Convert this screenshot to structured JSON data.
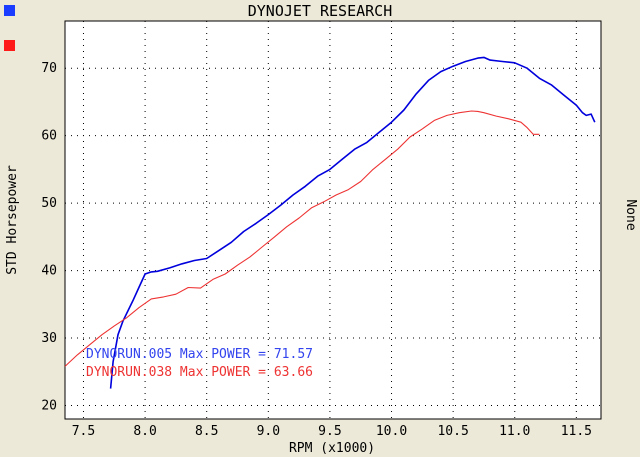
{
  "chart_data": {
    "type": "line",
    "title": "DYNOJET RESEARCH",
    "xlabel": "RPM (x1000)",
    "ylabel": "STD Horsepower",
    "y2label": "None",
    "xlim": [
      7.35,
      11.7
    ],
    "ylim": [
      18,
      77
    ],
    "x_ticks": [
      "7.5",
      "8.0",
      "8.5",
      "9.0",
      "9.5",
      "10.0",
      "10.5",
      "11.0",
      "11.5"
    ],
    "y_ticks": [
      "20",
      "30",
      "40",
      "50",
      "60",
      "70"
    ],
    "grid": true,
    "annotations": [
      "DYNORUN.005 Max POWER = 71.57",
      "DYNORUN.038 Max POWER = 63.66"
    ],
    "series": [
      {
        "color": "#0000dd",
        "x": [
          7.72,
          7.74,
          7.78,
          7.82,
          7.86,
          7.9,
          7.95,
          8.0,
          8.05,
          8.1,
          8.2,
          8.3,
          8.4,
          8.5,
          8.6,
          8.7,
          8.8,
          8.9,
          9.0,
          9.1,
          9.2,
          9.3,
          9.4,
          9.5,
          9.6,
          9.7,
          9.8,
          9.9,
          10.0,
          10.1,
          10.2,
          10.3,
          10.4,
          10.5,
          10.6,
          10.7,
          10.75,
          10.8,
          10.9,
          11.0,
          11.1,
          11.2,
          11.3,
          11.4,
          11.5,
          11.55,
          11.58,
          11.62,
          11.65
        ],
        "values": [
          22.5,
          26.5,
          30.5,
          32.5,
          34.0,
          35.5,
          37.5,
          39.5,
          39.8,
          39.9,
          40.4,
          41.0,
          41.5,
          41.8,
          43.0,
          44.2,
          45.8,
          47.0,
          48.3,
          49.7,
          51.2,
          52.5,
          54.0,
          55.0,
          56.5,
          58.0,
          59.0,
          60.5,
          62.0,
          63.8,
          66.2,
          68.2,
          69.5,
          70.3,
          71.0,
          71.5,
          71.6,
          71.2,
          71.0,
          70.8,
          70.0,
          68.5,
          67.5,
          66.0,
          64.5,
          63.4,
          63.0,
          63.2,
          62.0
        ]
      },
      {
        "color": "#ee3333",
        "x": [
          7.35,
          7.45,
          7.55,
          7.65,
          7.75,
          7.85,
          7.95,
          8.05,
          8.15,
          8.25,
          8.35,
          8.45,
          8.55,
          8.65,
          8.75,
          8.85,
          8.95,
          9.05,
          9.15,
          9.25,
          9.35,
          9.45,
          9.55,
          9.65,
          9.75,
          9.85,
          9.95,
          10.05,
          10.15,
          10.25,
          10.35,
          10.45,
          10.55,
          10.65,
          10.7,
          10.75,
          10.85,
          10.95,
          11.05,
          11.1,
          11.15,
          11.2
        ],
        "values": [
          25.8,
          27.5,
          29.0,
          30.5,
          31.8,
          33.0,
          34.5,
          35.8,
          36.1,
          36.5,
          37.5,
          37.4,
          38.7,
          39.5,
          40.8,
          42.0,
          43.5,
          45.0,
          46.5,
          47.8,
          49.3,
          50.2,
          51.2,
          52.0,
          53.2,
          55.0,
          56.5,
          58.0,
          59.8,
          61.0,
          62.3,
          63.0,
          63.4,
          63.66,
          63.6,
          63.4,
          62.9,
          62.5,
          62.0,
          61.2,
          60.2,
          60.2
        ]
      }
    ]
  }
}
